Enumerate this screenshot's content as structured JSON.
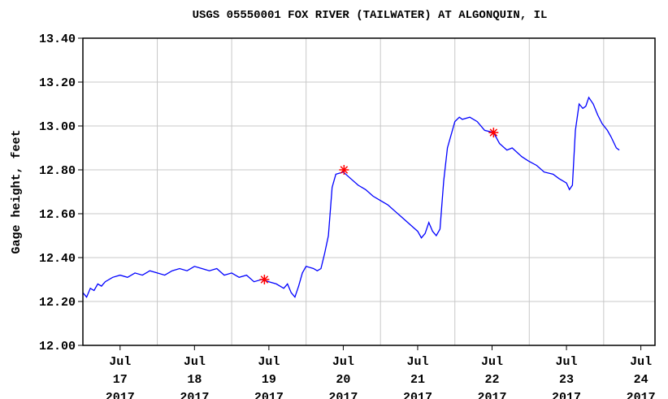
{
  "chart_data": {
    "type": "line",
    "title": "USGS 05550001 FOX RIVER (TAILWATER) AT ALGONQUIN, IL",
    "y_label": "Gage height, feet",
    "xlim": [
      17,
      24.69
    ],
    "xticks": [
      {
        "value": 17.5,
        "label": "Jul 17 2017"
      },
      {
        "value": 18.5,
        "label": "Jul 18 2017"
      },
      {
        "value": 19.5,
        "label": "Jul 19 2017"
      },
      {
        "value": 20.5,
        "label": "Jul 20 2017"
      },
      {
        "value": 21.5,
        "label": "Jul 21 2017"
      },
      {
        "value": 22.5,
        "label": "Jul 22 2017"
      },
      {
        "value": 23.5,
        "label": "Jul 23 2017"
      },
      {
        "value": 24.5,
        "label": "Jul 24 2017"
      }
    ],
    "xgrid": [
      18,
      19,
      20,
      21,
      22,
      23,
      24
    ],
    "ylim": [
      12.0,
      13.4
    ],
    "yticks": [
      {
        "value": 12.0,
        "label": "12.00"
      },
      {
        "value": 12.2,
        "label": "12.20"
      },
      {
        "value": 12.4,
        "label": "12.40"
      },
      {
        "value": 12.6,
        "label": "12.60"
      },
      {
        "value": 12.8,
        "label": "12.80"
      },
      {
        "value": 13.0,
        "label": "13.00"
      },
      {
        "value": 13.2,
        "label": "13.20"
      },
      {
        "value": 13.4,
        "label": "13.40"
      }
    ],
    "grid": true,
    "series": [
      {
        "color": "#0000ff",
        "x": [
          17.0,
          17.05,
          17.1,
          17.15,
          17.2,
          17.25,
          17.3,
          17.4,
          17.5,
          17.6,
          17.7,
          17.8,
          17.9,
          18.0,
          18.1,
          18.2,
          18.3,
          18.4,
          18.5,
          18.6,
          18.7,
          18.8,
          18.9,
          19.0,
          19.1,
          19.2,
          19.3,
          19.4,
          19.5,
          19.6,
          19.7,
          19.75,
          19.8,
          19.85,
          19.9,
          19.95,
          20.0,
          20.1,
          20.15,
          20.2,
          20.25,
          20.3,
          20.35,
          20.4,
          20.5,
          20.6,
          20.7,
          20.8,
          20.9,
          21.0,
          21.1,
          21.2,
          21.3,
          21.4,
          21.5,
          21.55,
          21.6,
          21.65,
          21.7,
          21.75,
          21.8,
          21.85,
          21.9,
          21.95,
          22.0,
          22.06,
          22.1,
          22.2,
          22.3,
          22.4,
          22.52,
          22.6,
          22.7,
          22.77,
          22.9,
          22.99,
          23.1,
          23.2,
          23.32,
          23.4,
          23.5,
          23.54,
          23.58,
          23.62,
          23.67,
          23.72,
          23.76,
          23.8,
          23.86,
          23.92,
          23.98,
          24.05,
          24.1,
          24.17,
          24.21
        ],
        "values": [
          12.24,
          12.22,
          12.26,
          12.25,
          12.28,
          12.27,
          12.29,
          12.31,
          12.32,
          12.31,
          12.33,
          12.32,
          12.34,
          12.33,
          12.32,
          12.34,
          12.35,
          12.34,
          12.36,
          12.35,
          12.34,
          12.35,
          12.32,
          12.33,
          12.31,
          12.32,
          12.29,
          12.3,
          12.29,
          12.28,
          12.26,
          12.28,
          12.24,
          12.22,
          12.27,
          12.33,
          12.36,
          12.35,
          12.34,
          12.35,
          12.42,
          12.5,
          12.72,
          12.78,
          12.79,
          12.76,
          12.73,
          12.71,
          12.68,
          12.66,
          12.64,
          12.61,
          12.58,
          12.55,
          12.52,
          12.49,
          12.51,
          12.56,
          12.52,
          12.5,
          12.53,
          12.75,
          12.9,
          12.96,
          13.02,
          13.04,
          13.03,
          13.04,
          13.02,
          12.98,
          12.97,
          12.92,
          12.89,
          12.9,
          12.86,
          12.84,
          12.82,
          12.79,
          12.78,
          12.76,
          12.74,
          12.71,
          12.73,
          12.98,
          13.1,
          13.08,
          13.09,
          13.13,
          13.1,
          13.05,
          13.01,
          12.98,
          12.95,
          12.9,
          12.89
        ]
      },
      {
        "color": "#ff0000",
        "marker": "asterisk",
        "x": [
          19.44,
          20.51,
          22.52
        ],
        "values": [
          12.3,
          12.8,
          12.97
        ]
      }
    ]
  }
}
